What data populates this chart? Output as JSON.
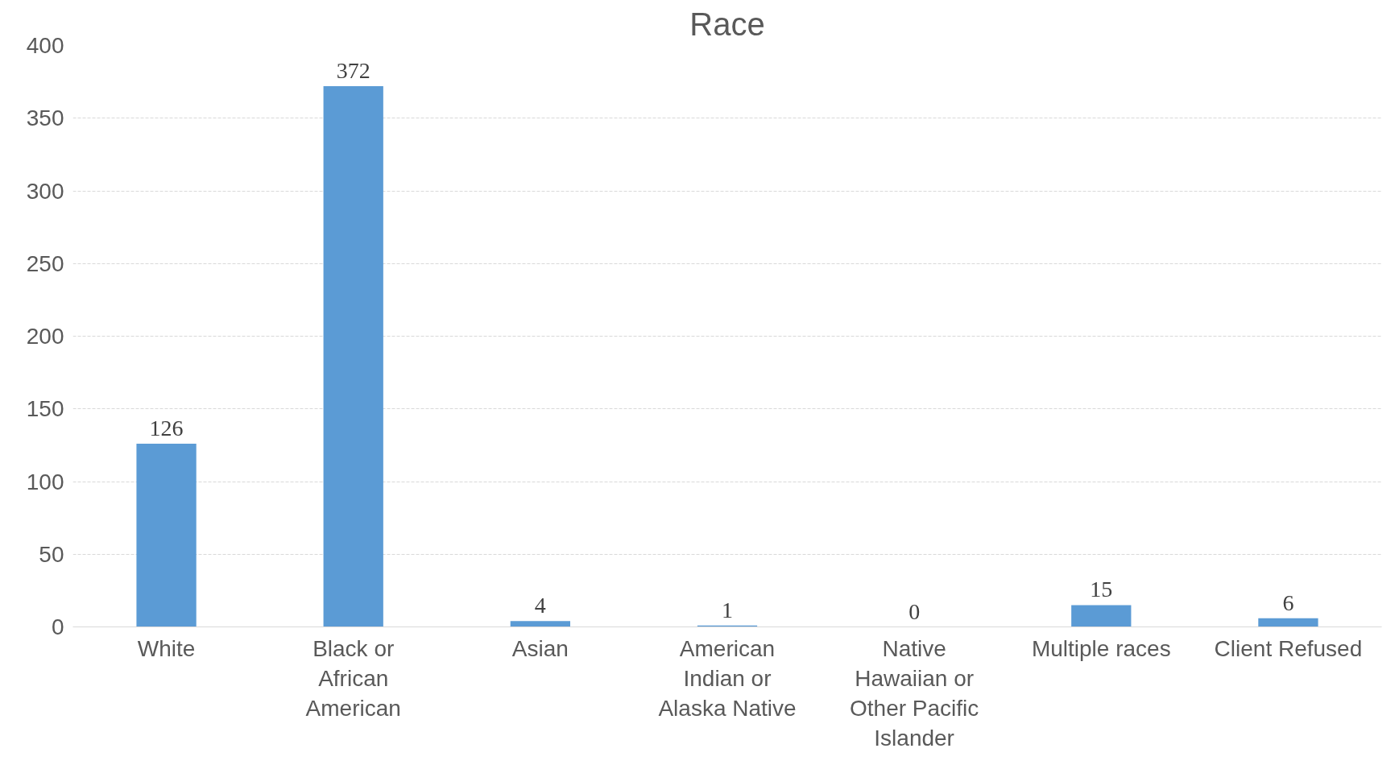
{
  "chart_data": {
    "type": "bar",
    "title": "Race",
    "categories": [
      "White",
      "Black or African American",
      "Asian",
      "American Indian or Alaska Native",
      "Native Hawaiian or Other Pacific Islander",
      "Multiple races",
      "Client Refused"
    ],
    "values": [
      126,
      372,
      4,
      1,
      0,
      15,
      6
    ],
    "color": "#5b9bd5",
    "ylim": [
      0,
      400
    ],
    "yticks": [
      0,
      50,
      100,
      150,
      200,
      250,
      300,
      350,
      400
    ],
    "grid": "y",
    "data_labels": true
  }
}
